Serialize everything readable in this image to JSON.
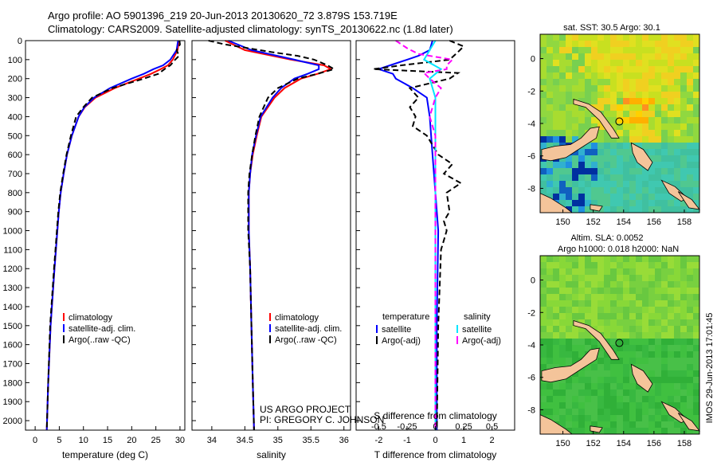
{
  "header": {
    "line1": "Argo profile: AO 5901396_219 20-Jun-2013 20130620_72 3.879S 153.719E",
    "line2": "Climatology: CARS2009. Satellite-adjusted climatology: synTS_20130622.nc (1.8d later)"
  },
  "colors": {
    "climatology": "#ff0000",
    "satellite": "#0000ff",
    "argo": "#000000",
    "salinity_satellite": "#00e5ff",
    "salinity_argo": "#ff00ff",
    "land": "#f4c49a",
    "ocean_base": "#4cc84c"
  },
  "chart_data": [
    {
      "type": "line",
      "name": "temperature",
      "xlabel": "temperature (deg C)",
      "ylabel": "",
      "xlim": [
        -2,
        31
      ],
      "ylim": [
        2050,
        0
      ],
      "xticks": [
        0,
        5,
        10,
        15,
        20,
        25,
        30
      ],
      "yticks": [
        0,
        100,
        200,
        300,
        400,
        500,
        600,
        700,
        800,
        900,
        1000,
        1100,
        1200,
        1300,
        1400,
        1500,
        1600,
        1700,
        1800,
        1900,
        2000
      ],
      "legend": [
        "climatology",
        "satellite-adj. clim.",
        "Argo(..raw -QC)"
      ],
      "series": [
        {
          "name": "climatology",
          "depth": [
            0,
            50,
            100,
            130,
            150,
            175,
            200,
            250,
            300,
            350,
            400,
            500,
            600,
            700,
            800,
            900,
            1000,
            1200,
            1500,
            1800,
            2050
          ],
          "values": [
            29.8,
            29.5,
            28.5,
            27.5,
            26.0,
            24.0,
            21.5,
            16.5,
            12.5,
            10.3,
            9.0,
            7.6,
            6.6,
            5.9,
            5.3,
            4.9,
            4.6,
            4.0,
            3.2,
            2.7,
            2.4
          ]
        },
        {
          "name": "satellite-adj. clim.",
          "depth": [
            0,
            50,
            100,
            130,
            150,
            175,
            200,
            250,
            300,
            350,
            400,
            500,
            600,
            700,
            800,
            900,
            1000,
            1200,
            1500,
            1800,
            2050
          ],
          "values": [
            29.6,
            29.3,
            28.0,
            26.5,
            24.5,
            22.5,
            20.0,
            15.5,
            12.2,
            10.2,
            9.0,
            7.6,
            6.6,
            5.9,
            5.3,
            4.9,
            4.6,
            4.0,
            3.2,
            2.7,
            2.4
          ]
        },
        {
          "name": "Argo(..raw -QC)",
          "depth": [
            0,
            20,
            50,
            80,
            100,
            130,
            150,
            175,
            200,
            250,
            300,
            350,
            400,
            500,
            600,
            700,
            800,
            900,
            1000,
            1200,
            1500,
            1800,
            2050
          ],
          "values": [
            29.9,
            30.0,
            29.3,
            29.8,
            29.0,
            28.0,
            26.8,
            25.5,
            22.5,
            16.0,
            11.8,
            10.0,
            8.5,
            7.4,
            6.5,
            5.8,
            5.2,
            4.8,
            4.5,
            3.9,
            3.1,
            2.7,
            2.4
          ]
        }
      ]
    },
    {
      "type": "line",
      "name": "salinity",
      "xlabel": "salinity",
      "xlim": [
        33.7,
        36.1
      ],
      "ylim": [
        2050,
        0
      ],
      "xticks": [
        34,
        34.5,
        35,
        35.5,
        36
      ],
      "legend": [
        "climatology",
        "satellite-adj. clim.",
        "Argo(..raw -QC)"
      ],
      "series": [
        {
          "name": "climatology",
          "depth": [
            0,
            50,
            100,
            130,
            150,
            175,
            200,
            250,
            300,
            400,
            500,
            600,
            700,
            800,
            1000,
            1200,
            1500,
            1800,
            2050
          ],
          "values": [
            34.2,
            34.5,
            35.2,
            35.7,
            35.8,
            35.6,
            35.35,
            35.1,
            34.95,
            34.75,
            34.68,
            34.62,
            34.58,
            34.56,
            34.56,
            34.58,
            34.6,
            34.62,
            34.64
          ]
        },
        {
          "name": "satellite-adj. clim.",
          "depth": [
            0,
            50,
            100,
            130,
            150,
            175,
            200,
            250,
            300,
            400,
            500,
            600,
            700,
            800,
            1000,
            1200,
            1500,
            1800,
            2050
          ],
          "values": [
            34.25,
            34.6,
            35.25,
            35.62,
            35.62,
            35.45,
            35.25,
            35.05,
            34.92,
            34.74,
            34.67,
            34.61,
            34.58,
            34.56,
            34.56,
            34.58,
            34.6,
            34.62,
            34.64
          ]
        },
        {
          "name": "Argo(..raw -QC)",
          "depth": [
            0,
            20,
            40,
            60,
            80,
            100,
            130,
            150,
            175,
            200,
            250,
            300,
            400,
            500,
            600,
            700,
            800,
            1000,
            1200,
            1500,
            1800,
            2050
          ],
          "values": [
            33.95,
            34.2,
            34.55,
            34.9,
            35.3,
            35.55,
            35.75,
            35.85,
            35.6,
            35.3,
            35.0,
            34.85,
            34.72,
            34.66,
            34.61,
            34.57,
            34.55,
            34.55,
            34.58,
            34.6,
            34.62,
            34.64
          ]
        }
      ]
    },
    {
      "type": "line",
      "name": "difference",
      "xlabel": "T difference from climatology",
      "xlabel_top": "S difference from climatology",
      "xlim": [
        -2.8,
        2.8
      ],
      "ylim": [
        2050,
        0
      ],
      "xticks": [
        -2,
        -1,
        0,
        1,
        2
      ],
      "xticks_top": [
        -0.5,
        -0.25,
        0,
        0.25,
        0.5
      ],
      "legend_headers": [
        "temperature",
        "salinity"
      ],
      "legend": [
        "satellite",
        "Argo(-adj)",
        "satellite",
        "Argo(-adj)"
      ],
      "series": [
        {
          "name": "temperature satellite",
          "depth": [
            0,
            50,
            80,
            100,
            130,
            150,
            175,
            200,
            250,
            300,
            400,
            600,
            800,
            1000,
            1500,
            2050
          ],
          "values": [
            -0.1,
            -0.2,
            -0.6,
            -1.0,
            -1.6,
            -2.0,
            -1.5,
            -1.4,
            -0.8,
            -0.3,
            -0.2,
            -0.1,
            0,
            0.1,
            0.05,
            0.05
          ]
        },
        {
          "name": "temperature Argo(-adj)",
          "depth": [
            0,
            30,
            60,
            100,
            130,
            150,
            170,
            200,
            250,
            300,
            350,
            400,
            450,
            500,
            600,
            650,
            700,
            750,
            800,
            900,
            950,
            1000,
            1050,
            1100,
            1500,
            2050
          ],
          "values": [
            0.5,
            1.0,
            0.8,
            0.5,
            -1.2,
            -2.2,
            0.8,
            0.5,
            -0.9,
            -0.6,
            -0.9,
            -0.7,
            -0.8,
            -0.3,
            0.1,
            0.6,
            0.3,
            0.9,
            0.4,
            0.5,
            0.3,
            0.4,
            0.3,
            0.2,
            0.1,
            0.05
          ]
        },
        {
          "name": "salinity satellite",
          "depth": [
            0,
            50,
            100,
            150,
            200,
            300,
            500,
            1000,
            2050
          ],
          "values": [
            0.0,
            -0.05,
            -0.1,
            0.05,
            -0.05,
            0.0,
            0.0,
            0.0,
            0.0
          ]
        },
        {
          "name": "salinity Argo(-adj)",
          "depth": [
            0,
            40,
            70,
            100,
            130,
            150,
            170,
            200,
            250,
            300,
            400,
            500,
            600,
            1000,
            2050
          ],
          "values": [
            -0.35,
            -0.25,
            -0.15,
            0.15,
            0.1,
            0.1,
            -0.1,
            -0.05,
            0.05,
            0.0,
            -0.05,
            0.0,
            0.0,
            0.0,
            0.0
          ]
        }
      ]
    },
    {
      "type": "heatmap",
      "name": "sst-map",
      "title": "sat. SST: 30.5 Argo: 30.1",
      "xticks": [
        150,
        152,
        154,
        156,
        158
      ],
      "yticks": [
        0,
        -2,
        -4,
        -6,
        -8
      ],
      "xlim": [
        148.5,
        159
      ],
      "ylim": [
        -9.5,
        1.5
      ],
      "marker": {
        "lon": 153.719,
        "lat": -3.879
      }
    },
    {
      "type": "heatmap",
      "name": "sla-map",
      "title_line1": "Altim. SLA: 0.0052",
      "title_line2": "Argo h1000: 0.018 h2000: NaN",
      "xticks": [
        150,
        152,
        154,
        156,
        158
      ],
      "yticks": [
        0,
        -2,
        -4,
        -6,
        -8
      ],
      "xlim": [
        148.5,
        159
      ],
      "ylim": [
        -9.5,
        1.5
      ],
      "marker": {
        "lon": 153.719,
        "lat": -3.879
      }
    }
  ],
  "annotations": {
    "project": "US ARGO PROJECT",
    "pi": "PI: GREGORY C. JOHNSON",
    "side_stamp": "IMOS 29-Jun-2013 17:01:45"
  }
}
